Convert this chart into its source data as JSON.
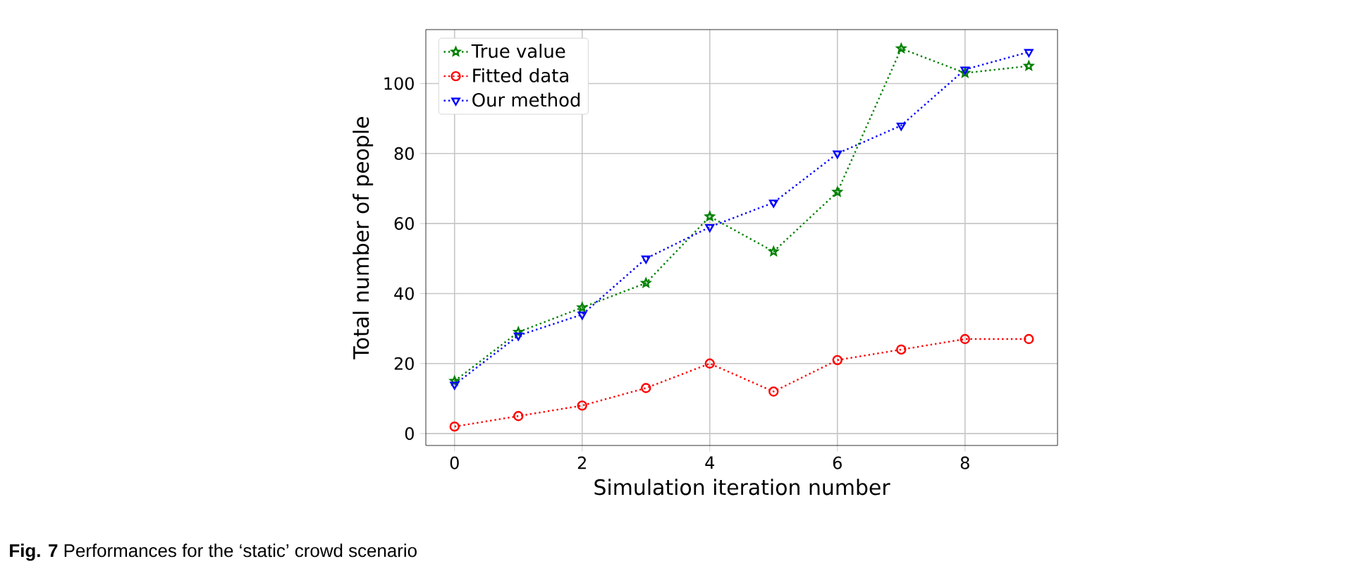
{
  "chart_data": {
    "type": "line",
    "x": [
      0,
      1,
      2,
      3,
      4,
      5,
      6,
      7,
      8,
      9
    ],
    "series": [
      {
        "name": "True value",
        "color": "#008000",
        "marker": "star",
        "values": [
          15,
          29,
          36,
          43,
          62,
          52,
          69,
          110,
          103,
          105
        ]
      },
      {
        "name": "Fitted data",
        "color": "#ff0000",
        "marker": "circle",
        "values": [
          2,
          5,
          8,
          13,
          20,
          12,
          21,
          24,
          27,
          27
        ]
      },
      {
        "name": "Our method",
        "color": "#0000ff",
        "marker": "triangle_down",
        "values": [
          14,
          28,
          34,
          50,
          59,
          66,
          80,
          88,
          104,
          109
        ]
      }
    ],
    "line_style": "dotted",
    "xlabel": "Simulation iteration number",
    "ylabel": "Total number of people",
    "xlim": [
      -0.45,
      9.45
    ],
    "ylim": [
      -3.4,
      115.4
    ],
    "xticks": [
      0,
      2,
      4,
      6,
      8
    ],
    "yticks": [
      0,
      20,
      40,
      60,
      80,
      100
    ],
    "grid": true,
    "legend": "top left",
    "annotations": [
      "**Fig. 7** Performances for the ‘static’ crowd scenario"
    ]
  }
}
